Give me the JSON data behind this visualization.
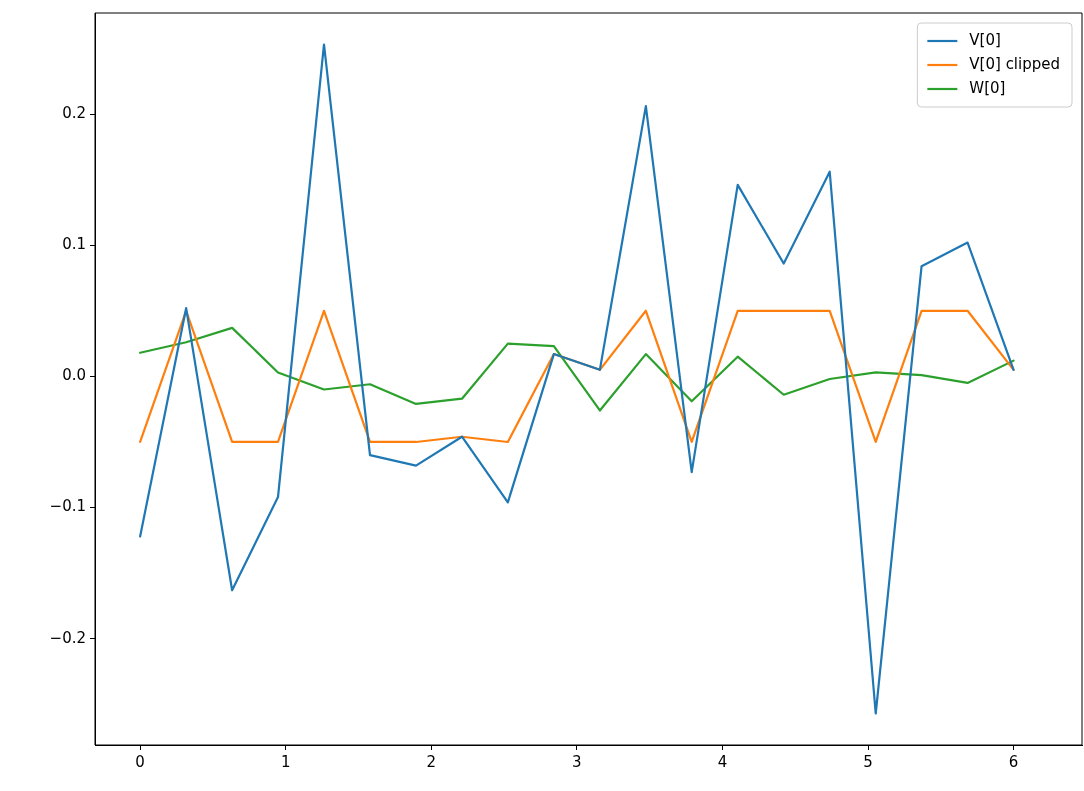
{
  "chart_data": {
    "type": "line",
    "x": [
      0,
      0.316,
      0.632,
      0.947,
      1.263,
      1.579,
      1.895,
      2.211,
      2.526,
      2.842,
      3.158,
      3.474,
      3.789,
      4.105,
      4.421,
      4.737,
      5.053,
      5.368,
      5.684,
      6
    ],
    "series": [
      {
        "name": "V[0]",
        "color": "#1f77b4",
        "values": [
          -0.122,
          0.052,
          -0.163,
          -0.092,
          0.253,
          -0.06,
          -0.068,
          -0.046,
          -0.096,
          0.017,
          0.005,
          0.206,
          -0.073,
          0.146,
          0.086,
          0.156,
          -0.257,
          0.084,
          0.102,
          0.005
        ]
      },
      {
        "name": "V[0] clipped",
        "color": "#ff7f0e",
        "values": [
          -0.05,
          0.05,
          -0.05,
          -0.05,
          0.05,
          -0.05,
          -0.05,
          -0.046,
          -0.05,
          0.017,
          0.005,
          0.05,
          -0.05,
          0.05,
          0.05,
          0.05,
          -0.05,
          0.05,
          0.05,
          0.005
        ]
      },
      {
        "name": "W[0]",
        "color": "#2ca02c",
        "values": [
          0.018,
          0.026,
          0.037,
          0.003,
          -0.01,
          -0.006,
          -0.021,
          -0.017,
          0.025,
          0.023,
          -0.026,
          0.017,
          -0.019,
          0.015,
          -0.014,
          -0.002,
          0.003,
          0.001,
          -0.005,
          0.012
        ]
      }
    ],
    "xlim": [
      -0.31,
      6.47
    ],
    "xticks": [
      0,
      1,
      2,
      3,
      4,
      5,
      6
    ],
    "ylim": [
      -0.281,
      0.277
    ],
    "yticks": [
      {
        "value": -0.2,
        "label": "−0.2"
      },
      {
        "value": -0.1,
        "label": "−0.1"
      },
      {
        "value": 0,
        "label": "0.0"
      },
      {
        "value": 0.1,
        "label": "0.1"
      },
      {
        "value": 0.2,
        "label": "0.2"
      }
    ],
    "grid": false,
    "legend": "top right",
    "marker": "none",
    "line_style": "solid"
  }
}
